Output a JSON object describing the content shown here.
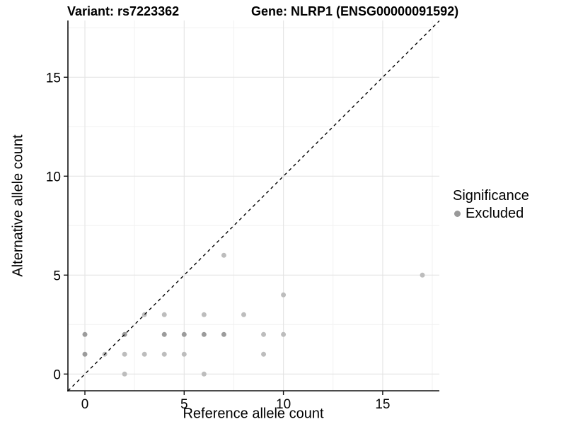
{
  "header": {
    "variant_title": "Variant: rs7223362",
    "gene_title": "Gene: NLRP1 (ENSG00000091592)"
  },
  "chart_data": {
    "type": "scatter",
    "title_left": "Variant: rs7223362",
    "title_right": "Gene: NLRP1 (ENSG00000091592)",
    "xlabel": "Reference allele count",
    "ylabel": "Alternative allele count",
    "xlim": [
      -0.85,
      17.85
    ],
    "ylim": [
      -0.85,
      17.85
    ],
    "x_ticks": [
      0,
      5,
      10,
      15
    ],
    "y_ticks": [
      0,
      5,
      10,
      15
    ],
    "minor_gridlines": [
      2.5,
      7.5,
      12.5,
      17.5
    ],
    "grid": "major+minor",
    "identity_line": {
      "style": "dashed",
      "slope": 1,
      "intercept": 0,
      "color": "#000000"
    },
    "legend": {
      "title": "Significance",
      "position": "right",
      "items": [
        {
          "label": "Excluded",
          "color": "#999999"
        }
      ]
    },
    "point_colors": {
      "light": "#bdbdbd",
      "medium": "#9c9c9c"
    },
    "series": [
      {
        "name": "Excluded",
        "points": [
          {
            "x": 2,
            "y": 0,
            "shade": "light"
          },
          {
            "x": 6,
            "y": 0,
            "shade": "light"
          },
          {
            "x": 0,
            "y": 1,
            "shade": "medium"
          },
          {
            "x": 1,
            "y": 1,
            "shade": "light"
          },
          {
            "x": 2,
            "y": 1,
            "shade": "light"
          },
          {
            "x": 3,
            "y": 1,
            "shade": "light"
          },
          {
            "x": 4,
            "y": 1,
            "shade": "light"
          },
          {
            "x": 5,
            "y": 1,
            "shade": "light"
          },
          {
            "x": 9,
            "y": 1,
            "shade": "light"
          },
          {
            "x": 0,
            "y": 2,
            "shade": "medium"
          },
          {
            "x": 2,
            "y": 2,
            "shade": "medium"
          },
          {
            "x": 4,
            "y": 2,
            "shade": "medium"
          },
          {
            "x": 5,
            "y": 2,
            "shade": "medium"
          },
          {
            "x": 6,
            "y": 2,
            "shade": "medium"
          },
          {
            "x": 7,
            "y": 2,
            "shade": "medium"
          },
          {
            "x": 9,
            "y": 2,
            "shade": "light"
          },
          {
            "x": 10,
            "y": 2,
            "shade": "light"
          },
          {
            "x": 3,
            "y": 3,
            "shade": "light"
          },
          {
            "x": 4,
            "y": 3,
            "shade": "light"
          },
          {
            "x": 6,
            "y": 3,
            "shade": "light"
          },
          {
            "x": 8,
            "y": 3,
            "shade": "light"
          },
          {
            "x": 10,
            "y": 4,
            "shade": "light"
          },
          {
            "x": 17,
            "y": 5,
            "shade": "light"
          },
          {
            "x": 7,
            "y": 6,
            "shade": "light"
          }
        ]
      }
    ],
    "style": {
      "major_grid_color": "#e4e4e4",
      "minor_grid_color": "#f1f1f1",
      "axis_color": "#111111",
      "point_radius": 3.5
    }
  }
}
